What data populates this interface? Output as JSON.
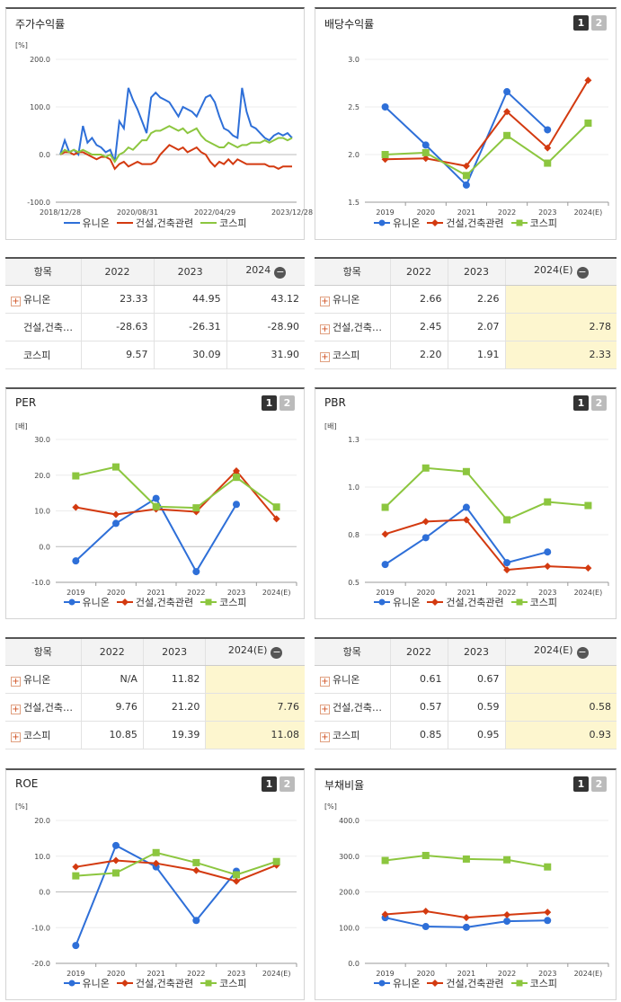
{
  "legend": {
    "series": [
      "유니온",
      "건설,건축관련",
      "코스피"
    ]
  },
  "colors": {
    "s0": "#2e6fd8",
    "s1": "#d33a10",
    "s2": "#8cc63f"
  },
  "charts": [
    {
      "id": "c1",
      "title": "주가수익률",
      "unit": "[%]",
      "tabs": []
    },
    {
      "id": "c2",
      "title": "배당수익률",
      "unit": "",
      "tabs": [
        "1",
        "2"
      ]
    },
    {
      "id": "c3",
      "title": "PER",
      "unit": "[배]",
      "tabs": [
        "1",
        "2"
      ]
    },
    {
      "id": "c4",
      "title": "PBR",
      "unit": "[배]",
      "tabs": [
        "1",
        "2"
      ]
    },
    {
      "id": "c5",
      "title": "ROE",
      "unit": "[%]",
      "tabs": [
        "1",
        "2"
      ]
    },
    {
      "id": "c6",
      "title": "부채비율",
      "unit": "[%]",
      "tabs": [
        "1",
        "2"
      ]
    }
  ],
  "chart_data": [
    {
      "type": "line",
      "title": "주가수익률",
      "ylim": [
        -100,
        200
      ],
      "yticks": [
        "200.0",
        "100.0",
        "0.0",
        "-100.0"
      ],
      "xticks": [
        "2018/12/28",
        "2020/08/31",
        "2022/04/29",
        "2023/12/28"
      ],
      "series": [
        {
          "name": "유니온",
          "values": [
            0,
            30,
            5,
            10,
            0,
            60,
            25,
            35,
            20,
            15,
            5,
            10,
            -15,
            70,
            55,
            140,
            115,
            95,
            70,
            45,
            120,
            130,
            120,
            115,
            110,
            95,
            80,
            100,
            95,
            90,
            80,
            100,
            120,
            125,
            110,
            80,
            55,
            50,
            40,
            35,
            140,
            90,
            60,
            55,
            45,
            35,
            30,
            40,
            45,
            40,
            45,
            35
          ]
        },
        {
          "name": "건설,건축관련",
          "values": [
            0,
            5,
            5,
            0,
            5,
            5,
            0,
            -5,
            -10,
            -5,
            -5,
            -10,
            -30,
            -20,
            -15,
            -25,
            -20,
            -15,
            -20,
            -20,
            -20,
            -15,
            0,
            10,
            20,
            15,
            10,
            15,
            5,
            10,
            15,
            5,
            0,
            -15,
            -25,
            -15,
            -20,
            -10,
            -20,
            -10,
            -15,
            -20,
            -20,
            -20,
            -20,
            -20,
            -25,
            -25,
            -30,
            -25,
            -25,
            -25
          ]
        },
        {
          "name": "코스피",
          "values": [
            0,
            10,
            5,
            10,
            5,
            10,
            5,
            0,
            0,
            0,
            -5,
            0,
            -15,
            0,
            5,
            15,
            10,
            20,
            30,
            30,
            45,
            50,
            50,
            55,
            60,
            55,
            50,
            55,
            45,
            50,
            55,
            40,
            30,
            25,
            20,
            15,
            15,
            25,
            20,
            15,
            20,
            20,
            25,
            25,
            25,
            30,
            25,
            30,
            35,
            35,
            30,
            35
          ]
        }
      ]
    },
    {
      "type": "line",
      "title": "배당수익률",
      "ylim": [
        1.5,
        3.0
      ],
      "yticks": [
        "3.0",
        "2.5",
        "2.0",
        "1.5"
      ],
      "categories": [
        "2019",
        "2020",
        "2021",
        "2022",
        "2023",
        "2024(E)"
      ],
      "series": [
        {
          "name": "유니온",
          "values": [
            2.5,
            2.1,
            1.68,
            2.66,
            2.26,
            null
          ]
        },
        {
          "name": "건설,건축관련",
          "values": [
            1.95,
            1.96,
            1.88,
            2.45,
            2.07,
            2.78
          ]
        },
        {
          "name": "코스피",
          "values": [
            2.0,
            2.02,
            1.78,
            2.2,
            1.91,
            2.33
          ]
        }
      ]
    },
    {
      "type": "line",
      "title": "PER",
      "ylim": [
        -10,
        30
      ],
      "yticks": [
        "30.0",
        "20.0",
        "10.0",
        "0.0",
        "-10.0"
      ],
      "categories": [
        "2019",
        "2020",
        "2021",
        "2022",
        "2023",
        "2024(E)"
      ],
      "series": [
        {
          "name": "유니온",
          "values": [
            -4,
            6.5,
            13.5,
            -7,
            11.82,
            null
          ]
        },
        {
          "name": "건설,건축관련",
          "values": [
            11,
            9,
            10.5,
            9.76,
            21.2,
            7.76
          ]
        },
        {
          "name": "코스피",
          "values": [
            19.8,
            22.3,
            11.2,
            10.85,
            19.39,
            11.08
          ]
        }
      ]
    },
    {
      "type": "line",
      "title": "PBR",
      "ylim": [
        0.5,
        1.3
      ],
      "yticks": [
        "1.3",
        "1.0",
        "0.8",
        "0.5"
      ],
      "categories": [
        "2019",
        "2020",
        "2021",
        "2022",
        "2023",
        "2024(E)"
      ],
      "series": [
        {
          "name": "유니온",
          "values": [
            0.6,
            0.75,
            0.92,
            0.61,
            0.67,
            null
          ]
        },
        {
          "name": "건설,건축관련",
          "values": [
            0.77,
            0.84,
            0.85,
            0.57,
            0.59,
            0.58
          ]
        },
        {
          "name": "코스피",
          "values": [
            0.92,
            1.14,
            1.12,
            0.85,
            0.95,
            0.93
          ]
        }
      ]
    },
    {
      "type": "line",
      "title": "ROE",
      "ylim": [
        -20,
        20
      ],
      "yticks": [
        "20.0",
        "10.0",
        "0.0",
        "-10.0",
        "-20.0"
      ],
      "categories": [
        "2019",
        "2020",
        "2021",
        "2022",
        "2023",
        "2024(E)"
      ],
      "series": [
        {
          "name": "유니온",
          "values": [
            -15,
            13,
            7,
            -8,
            5.8,
            null
          ]
        },
        {
          "name": "건설,건축관련",
          "values": [
            7,
            8.8,
            8,
            6,
            3,
            7.5
          ]
        },
        {
          "name": "코스피",
          "values": [
            4.5,
            5.3,
            11,
            8.2,
            4.8,
            8.5
          ]
        }
      ]
    },
    {
      "type": "line",
      "title": "부채비율",
      "ylim": [
        0,
        400
      ],
      "yticks": [
        "400.0",
        "300.0",
        "200.0",
        "100.0",
        "0.0"
      ],
      "categories": [
        "2019",
        "2020",
        "2021",
        "2022",
        "2023",
        "2024(E)"
      ],
      "series": [
        {
          "name": "유니온",
          "values": [
            128,
            103,
            101,
            118,
            120,
            null
          ]
        },
        {
          "name": "건설,건축관련",
          "values": [
            137,
            146,
            128,
            136,
            143,
            null
          ]
        },
        {
          "name": "코스피",
          "values": [
            288,
            302,
            292,
            290,
            270,
            null
          ]
        }
      ]
    }
  ],
  "tables": [
    {
      "id": "t1",
      "headers": [
        "항목",
        "2022",
        "2023",
        "2024"
      ],
      "est_col": false,
      "rows": [
        {
          "name": "유니온",
          "plus": true,
          "values": [
            "23.33",
            "44.95",
            "43.12"
          ]
        },
        {
          "name": "건설,건축…",
          "plus": false,
          "values": [
            "-28.63",
            "-26.31",
            "-28.90"
          ]
        },
        {
          "name": "코스피",
          "plus": false,
          "values": [
            "9.57",
            "30.09",
            "31.90"
          ]
        }
      ]
    },
    {
      "id": "t2",
      "headers": [
        "항목",
        "2022",
        "2023",
        "2024(E)"
      ],
      "est_col": true,
      "rows": [
        {
          "name": "유니온",
          "plus": true,
          "values": [
            "2.66",
            "2.26",
            ""
          ]
        },
        {
          "name": "건설,건축…",
          "plus": true,
          "values": [
            "2.45",
            "2.07",
            "2.78"
          ]
        },
        {
          "name": "코스피",
          "plus": true,
          "values": [
            "2.20",
            "1.91",
            "2.33"
          ]
        }
      ]
    },
    {
      "id": "t3",
      "headers": [
        "항목",
        "2022",
        "2023",
        "2024(E)"
      ],
      "est_col": true,
      "rows": [
        {
          "name": "유니온",
          "plus": true,
          "values": [
            "N/A",
            "11.82",
            ""
          ]
        },
        {
          "name": "건설,건축…",
          "plus": true,
          "values": [
            "9.76",
            "21.20",
            "7.76"
          ]
        },
        {
          "name": "코스피",
          "plus": true,
          "values": [
            "10.85",
            "19.39",
            "11.08"
          ]
        }
      ]
    },
    {
      "id": "t4",
      "headers": [
        "항목",
        "2022",
        "2023",
        "2024(E)"
      ],
      "est_col": true,
      "rows": [
        {
          "name": "유니온",
          "plus": true,
          "values": [
            "0.61",
            "0.67",
            ""
          ]
        },
        {
          "name": "건설,건축…",
          "plus": true,
          "values": [
            "0.57",
            "0.59",
            "0.58"
          ]
        },
        {
          "name": "코스피",
          "plus": true,
          "values": [
            "0.85",
            "0.95",
            "0.93"
          ]
        }
      ]
    }
  ]
}
